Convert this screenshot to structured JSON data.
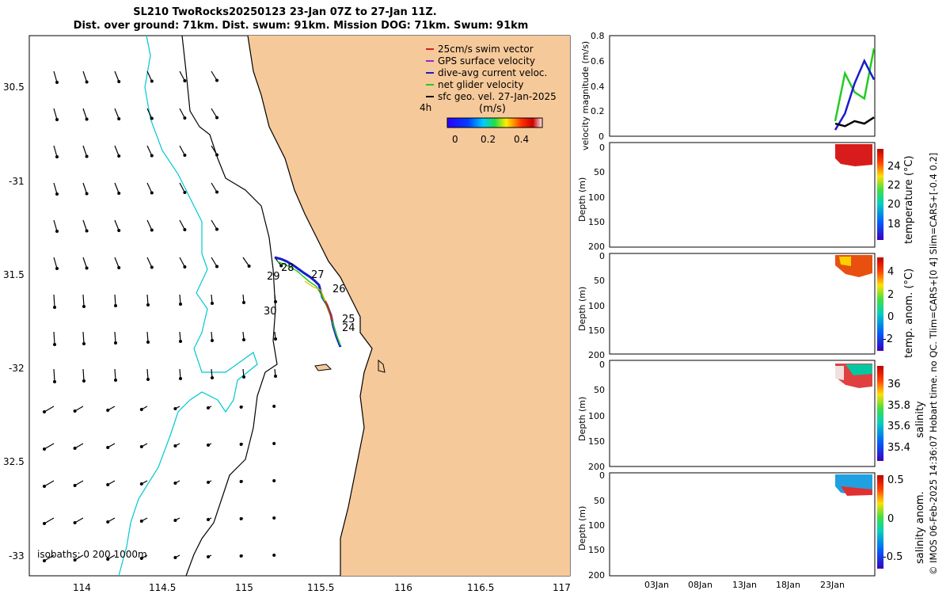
{
  "header": {
    "title_line1": "SL210 TwoRocks20250123 23-Jan 07Z to 27-Jan 11Z.",
    "title_line2": "Dist. over ground: 71km. Dist. swum: 91km. Mission DOG: 71km. Swum: 91km"
  },
  "map": {
    "lon_ticks": [
      "114",
      "114.5",
      "115",
      "115.5",
      "116",
      "116.5",
      "117"
    ],
    "lat_ticks": [
      "30.5",
      "-31",
      "31.5",
      "-32",
      "32.5",
      "-33"
    ],
    "legend": [
      {
        "label": "25cm/s swim vector",
        "color": "#d42020"
      },
      {
        "label": "GPS surface velocity",
        "color": "#8a2be2"
      },
      {
        "label": "dive-avg current veloc.",
        "color": "#1a1acc"
      },
      {
        "label": "net glider velocity",
        "color": "#22cc22"
      },
      {
        "label": "sfc geo. vel. 27-Jan-2025",
        "color": "#000000"
      }
    ],
    "colorbar_title": "(m/s)",
    "colorbar_ticks": [
      "0",
      "0.2",
      "0.4"
    ],
    "label_4h": "4h",
    "isobaths_label": "isobaths: 0   200  1000m",
    "day_labels": [
      "29",
      "28",
      "27",
      "26",
      "30",
      "25",
      "24"
    ],
    "land_color": "#f6c99a",
    "isobath_200_color": "#000000",
    "isobath_1000_color": "#00c8d2"
  },
  "panels": {
    "velocity": {
      "ylabel": "velocity magnitude (m/s)",
      "yticks": [
        "0.8",
        "0.6",
        "0.4",
        "0.2",
        "0"
      ]
    },
    "temperature": {
      "ylabel": "Depth (m)",
      "yticks": [
        "0",
        "50",
        "100",
        "150",
        "200"
      ],
      "cbar_label": "temperature (°C)",
      "cbar_ticks": [
        "24",
        "22",
        "20",
        "18"
      ]
    },
    "temp_anom": {
      "ylabel": "Depth (m)",
      "yticks": [
        "0",
        "50",
        "100",
        "150",
        "200"
      ],
      "cbar_label": "temp. anom. (°C)",
      "cbar_ticks": [
        "4",
        "2",
        "0",
        "-2"
      ]
    },
    "salinity": {
      "ylabel": "Depth (m)",
      "yticks": [
        "0",
        "50",
        "100",
        "150",
        "200"
      ],
      "cbar_label": "salinity",
      "cbar_ticks": [
        "36",
        "35.8",
        "35.6",
        "35.4"
      ]
    },
    "sal_anom": {
      "ylabel": "Depth (m)",
      "yticks": [
        "0",
        "50",
        "100",
        "150",
        "200"
      ],
      "cbar_label": "salinity anom.",
      "cbar_ticks": [
        "0.5",
        "0",
        "-0.5"
      ]
    },
    "time_ticks": [
      "03Jan",
      "08Jan",
      "13Jan",
      "18Jan",
      "23Jan"
    ]
  },
  "footer": "© IMOS 06-Feb-2025 14:36:07 Hobart time. no QC. Tlim=CARS+[0 4] Slim=CARS+[-0.4 0.2]",
  "chart_data": [
    {
      "type": "scatter",
      "name": "glider track map",
      "x_range": [
        113.65,
        117
      ],
      "y_range": [
        -33.05,
        -30.25
      ],
      "track": {
        "lon": [
          115.2,
          115.28,
          115.35,
          115.42,
          115.48,
          115.52,
          115.54,
          115.56,
          115.57,
          115.58,
          115.6,
          115.62
        ],
        "lat": [
          -31.41,
          -31.43,
          -31.47,
          -31.5,
          -31.55,
          -31.57,
          -31.63,
          -31.7,
          -31.75,
          -31.8,
          -31.85,
          -31.9
        ]
      }
    },
    {
      "type": "line",
      "name": "velocity magnitude",
      "ylim": [
        0,
        0.8
      ],
      "x": [
        "23Jan",
        "24Jan",
        "25Jan",
        "26Jan",
        "27Jan"
      ],
      "series": [
        {
          "name": "net glider velocity",
          "values": [
            0.12,
            0.5,
            0.35,
            0.3,
            0.7
          ]
        },
        {
          "name": "dive-avg current veloc.",
          "values": [
            0.05,
            0.18,
            0.42,
            0.6,
            0.45
          ]
        },
        {
          "name": "sfc geo. vel. 27-Jan-2025",
          "values": [
            0.1,
            0.08,
            0.12,
            0.1,
            0.15
          ]
        }
      ]
    }
  ]
}
